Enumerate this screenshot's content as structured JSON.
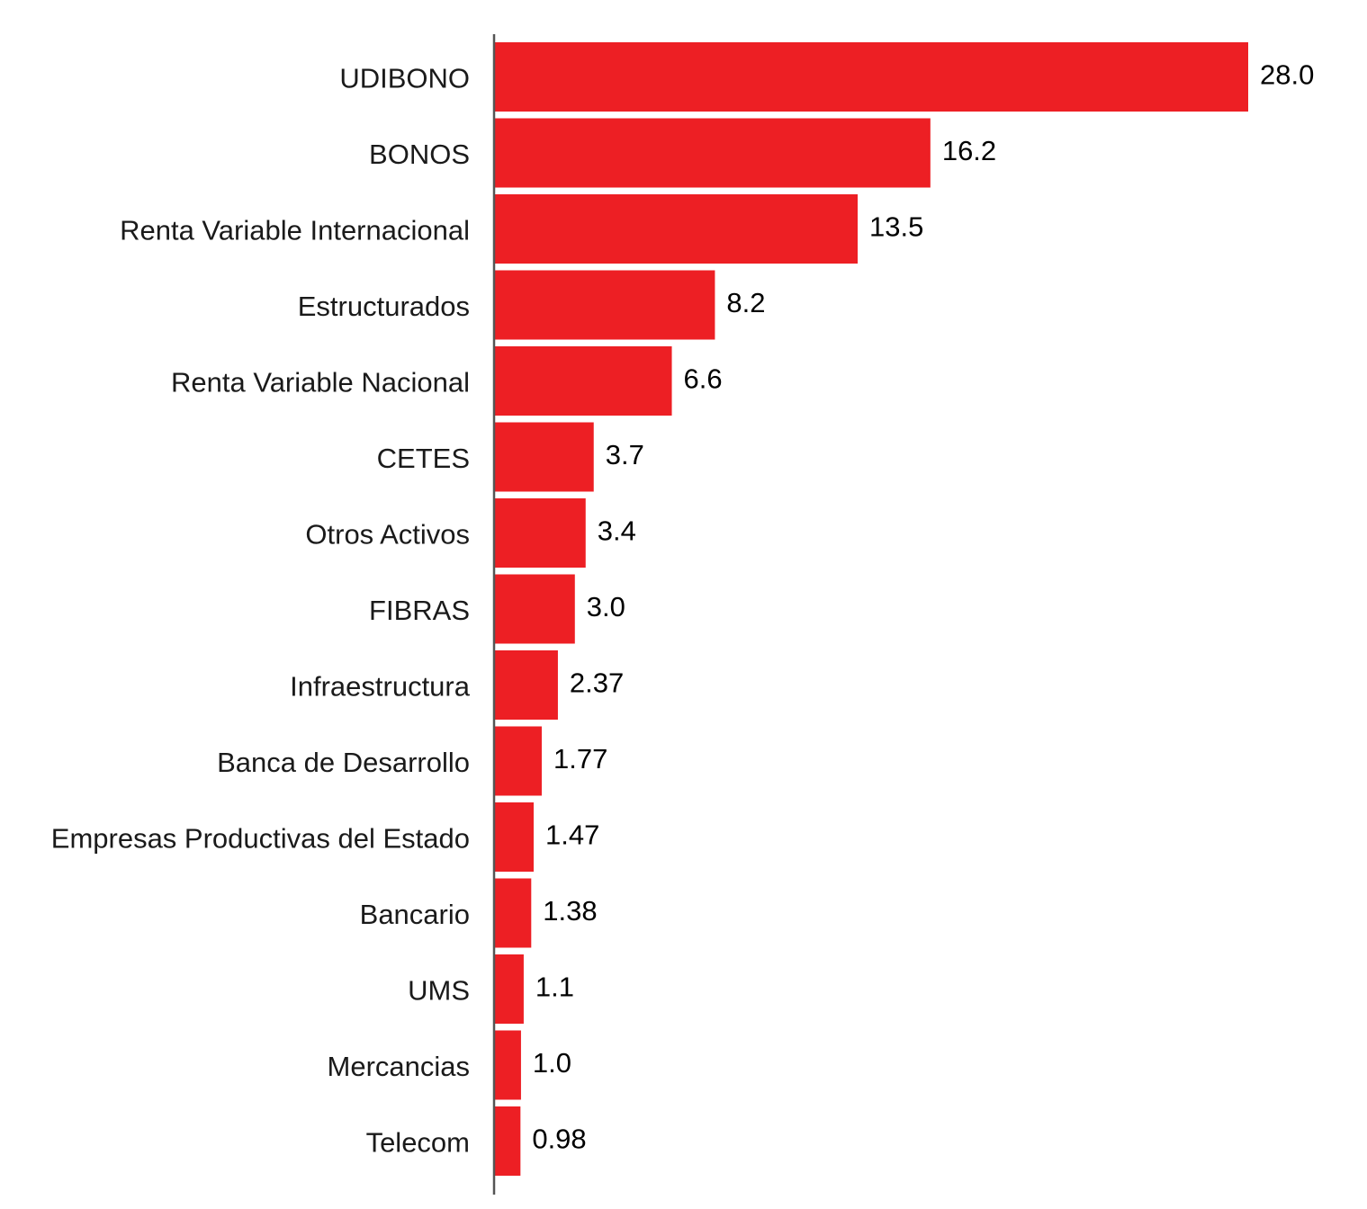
{
  "colors": {
    "bar": "#ed1f24",
    "axis": "#555555",
    "text": "#1a1a1a",
    "background": "#ffffff"
  },
  "chart_data": {
    "type": "bar",
    "orientation": "horizontal",
    "title": "",
    "xlabel": "",
    "ylabel": "",
    "grid": false,
    "legend": "none",
    "xlim": [
      0,
      28.0
    ],
    "categories": [
      "UDIBONO",
      "BONOS",
      "Renta Variable Internacional",
      "Estructurados",
      "Renta Variable Nacional",
      "CETES",
      "Otros Activos",
      "FIBRAS",
      "Infraestructura",
      "Banca de Desarrollo",
      "Empresas Productivas del Estado",
      "Bancario",
      "UMS",
      "Mercancias",
      "Telecom"
    ],
    "values": [
      28.0,
      16.2,
      13.5,
      8.2,
      6.6,
      3.7,
      3.4,
      3.0,
      2.37,
      1.77,
      1.47,
      1.38,
      1.1,
      1.0,
      0.98
    ],
    "value_labels": [
      "28.0",
      "16.2",
      "13.5",
      "8.2",
      "6.6",
      "3.7",
      "3.4",
      "3.0",
      "2.37",
      "1.77",
      "1.47",
      "1.38",
      "1.1",
      "1.0",
      "0.98"
    ]
  }
}
